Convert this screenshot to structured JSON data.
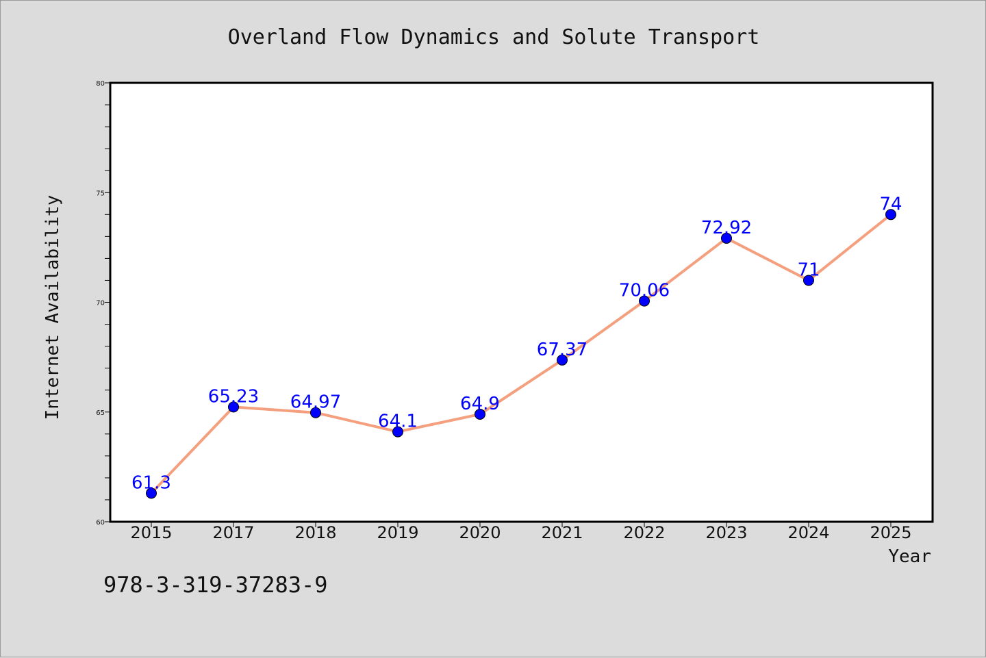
{
  "chart_data": {
    "type": "line",
    "title": "Overland Flow Dynamics and Solute Transport",
    "xlabel": "Year",
    "ylabel": "Internet Availability",
    "categories": [
      "2015",
      "2017",
      "2018",
      "2019",
      "2020",
      "2021",
      "2022",
      "2023",
      "2024",
      "2025"
    ],
    "series": [
      {
        "values": [
          61.3,
          65.23,
          64.97,
          64.1,
          64.9,
          67.37,
          70.06,
          72.92,
          71,
          74
        ],
        "data_labels": [
          "61.3",
          "65.23",
          "64.97",
          "64.1",
          "64.9",
          "67.37",
          "70.06",
          "72.92",
          "71",
          "74"
        ],
        "line_color": "#f4a07f",
        "marker_color": "#0000ff"
      }
    ],
    "ylim": [
      60,
      80
    ],
    "y_ticks": [
      "60",
      "65",
      "70",
      "75",
      "80"
    ],
    "grid": false,
    "legend": "none",
    "data_label_color": "#0000ff"
  },
  "footer": {
    "isbn": "978-3-319-37283-9"
  }
}
